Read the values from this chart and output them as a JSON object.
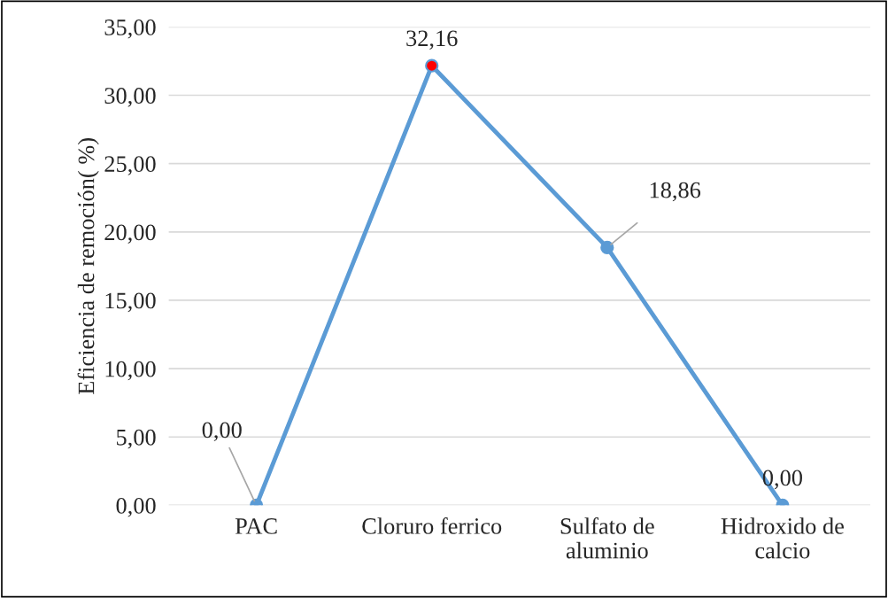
{
  "chart_data": {
    "type": "line",
    "ylabel": "Eficiencia de remoción( %)",
    "categories": [
      "PAC",
      "Cloruro ferrico",
      "Sulfato de aluminio",
      "Hidroxido de calcio"
    ],
    "series": [
      {
        "color": "#5b9bd5",
        "colors": [
          "#5b9bd5",
          "#ff0000",
          "#5b9bd5",
          "#5b9bd5"
        ],
        "values": [
          0,
          32.16,
          18.86,
          0
        ],
        "value_labels": [
          "0,00",
          "32,16",
          "18,86",
          "0,00"
        ]
      }
    ],
    "ylim": [
      0,
      35
    ],
    "yticks": [
      {
        "value": 0,
        "label": "0,00"
      },
      {
        "value": 5,
        "label": "5,00"
      },
      {
        "value": 10,
        "label": "10,00"
      },
      {
        "value": 15,
        "label": "15,00"
      },
      {
        "value": 20,
        "label": "20,00"
      },
      {
        "value": 25,
        "label": "25,00"
      },
      {
        "value": 30,
        "label": "30,00"
      },
      {
        "value": 35,
        "label": "35,00"
      }
    ],
    "grid": "y",
    "marker": "circle",
    "line_style": "solid"
  }
}
